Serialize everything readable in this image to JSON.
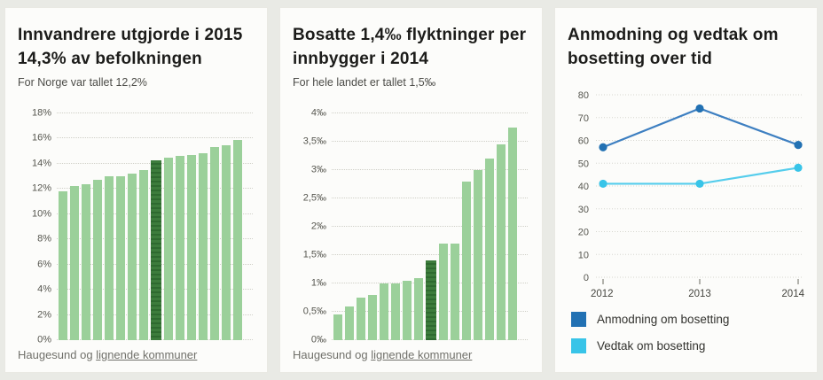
{
  "chart_data": [
    {
      "type": "bar",
      "title": "Innvandrere utgjorde i 2015 14,3% av befolkningen",
      "subtitle": "For Norge var tallet 12,2%",
      "footer_prefix": "Haugesund og ",
      "footer_link": "lignende kommuner",
      "unit": "%",
      "ylim": [
        0,
        18
      ],
      "yticks": [
        0,
        2,
        4,
        6,
        8,
        10,
        12,
        14,
        16,
        18
      ],
      "ytick_labels": [
        "0%",
        "2%",
        "4%",
        "6%",
        "8%",
        "10%",
        "12%",
        "14%",
        "16%",
        "18%"
      ],
      "values": [
        11.8,
        12.2,
        12.4,
        12.7,
        13.0,
        13.0,
        13.2,
        13.5,
        14.3,
        14.5,
        14.6,
        14.7,
        14.8,
        15.3,
        15.5,
        15.9
      ],
      "highlight_index": 8,
      "bar_color": "#9bd09a",
      "highlight_color": "#3d7c3c",
      "grid": true,
      "x_labels_visible": false
    },
    {
      "type": "bar",
      "title": "Bosatte 1,4‰ flyktninger per innbygger i 2014",
      "subtitle": "For hele landet er tallet 1,5‰",
      "footer_prefix": "Haugesund og ",
      "footer_link": "lignende kommuner",
      "unit": "‰",
      "ylim": [
        0,
        4
      ],
      "yticks": [
        0,
        0.5,
        1,
        1.5,
        2,
        2.5,
        3,
        3.5,
        4
      ],
      "ytick_labels": [
        "0‰",
        "0,5‰",
        "1‰",
        "1,5‰",
        "2‰",
        "2,5‰",
        "3‰",
        "3,5‰",
        "4‰"
      ],
      "values": [
        0.45,
        0.6,
        0.75,
        0.8,
        1.0,
        1.0,
        1.05,
        1.1,
        1.4,
        1.7,
        1.7,
        2.8,
        3.0,
        3.2,
        3.45,
        3.75
      ],
      "highlight_index": 8,
      "bar_color": "#9bd09a",
      "highlight_color": "#3d7c3c",
      "grid": true,
      "x_labels_visible": false
    },
    {
      "type": "line",
      "title": "Anmodning og vedtak om bosetting over tid",
      "x": [
        "2012",
        "2013",
        "2014"
      ],
      "ylim": [
        0,
        80
      ],
      "yticks": [
        0,
        10,
        20,
        30,
        40,
        50,
        60,
        70,
        80
      ],
      "ytick_labels": [
        "0",
        "10",
        "20",
        "30",
        "40",
        "50",
        "60",
        "70",
        "80"
      ],
      "series": [
        {
          "name": "Anmodning om bosetting",
          "values": [
            57,
            74,
            58
          ],
          "color": "#2271b3",
          "line_color": "#3d7fc1"
        },
        {
          "name": "Vedtak om bosetting",
          "values": [
            41,
            41,
            48
          ],
          "color": "#38c4e8",
          "line_color": "#55cdec"
        }
      ],
      "legend_position": "bottom",
      "grid": true
    }
  ]
}
